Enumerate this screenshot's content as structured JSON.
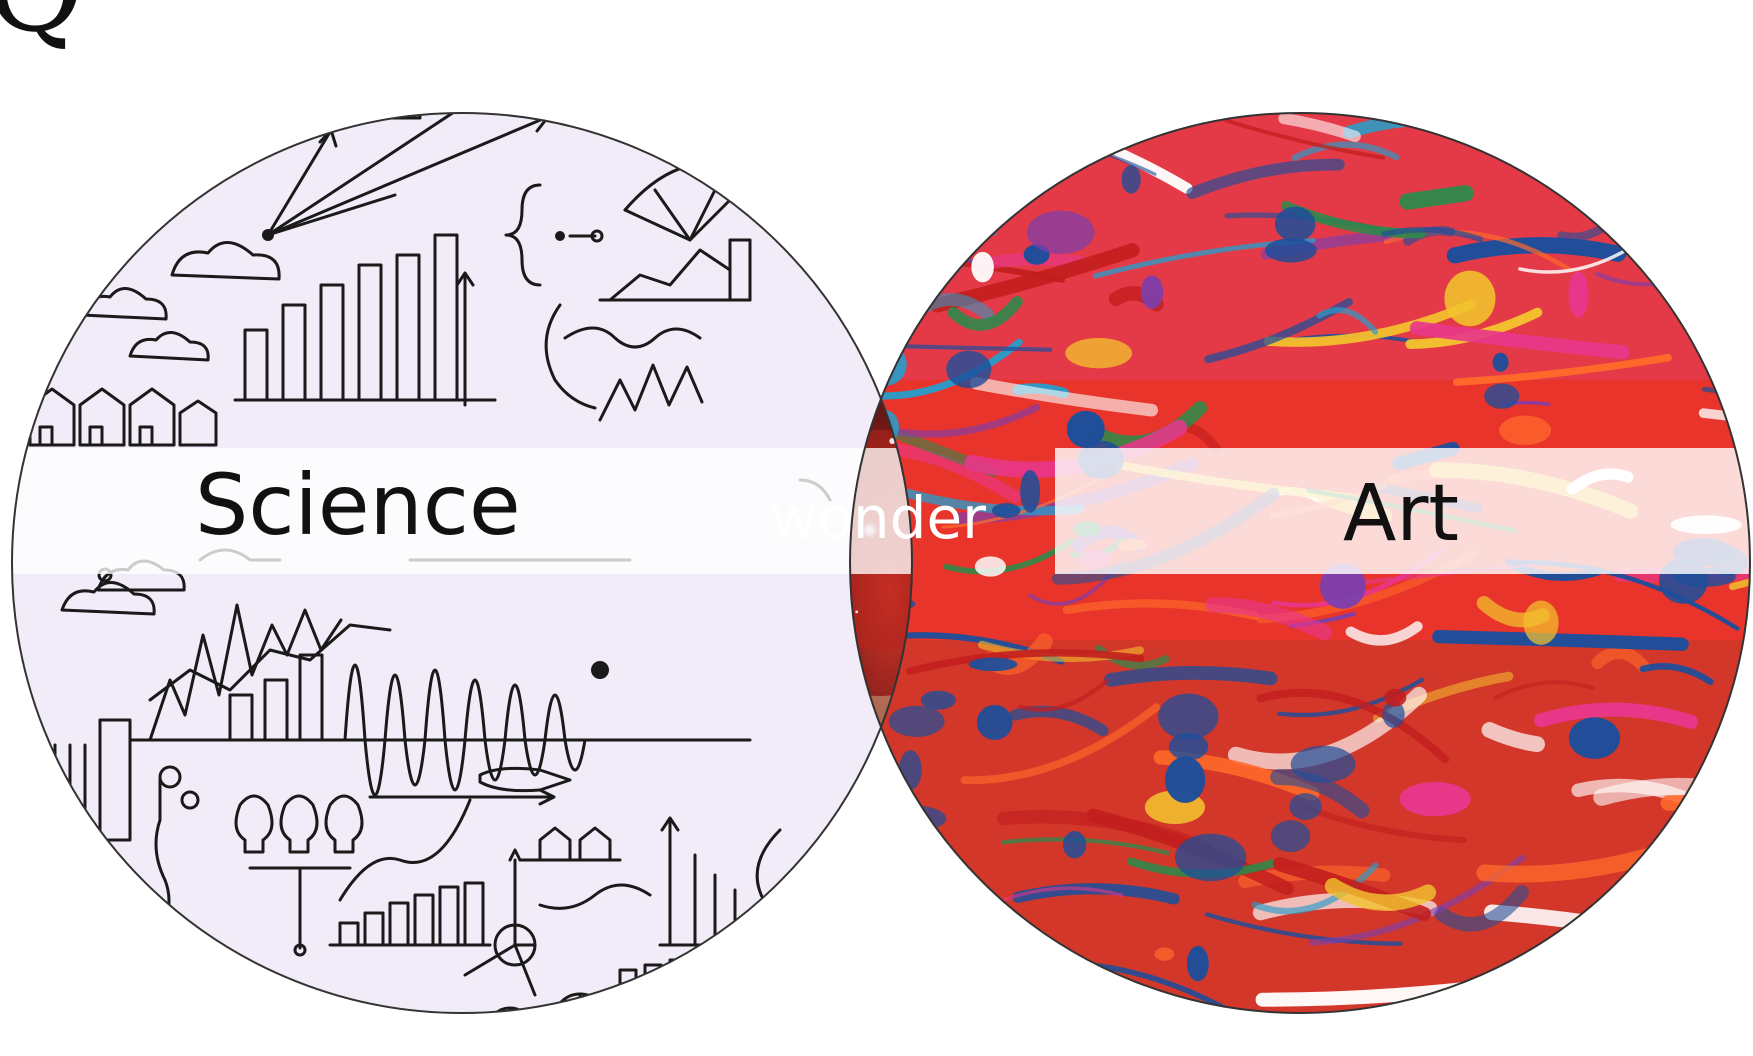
{
  "corner_text": "Q",
  "venn": {
    "left_set": {
      "label": "Science",
      "fill_style": "hand-drawn science doodles on pale lavender"
    },
    "right_set": {
      "label": "Art",
      "fill_style": "abstract paint splatter"
    },
    "intersection": {
      "label": "wonder",
      "fill_style": "nebula with stars"
    }
  },
  "colors": {
    "science_bg": "#f1ecf7",
    "doodle_ink": "#1a1a1a",
    "band": "#ffffff",
    "art_red": "#e8342a",
    "art_blue": "#1f4e9a",
    "art_pink": "#e8378b",
    "nebula_core": "#8a1f1a",
    "space": "#05060d"
  }
}
